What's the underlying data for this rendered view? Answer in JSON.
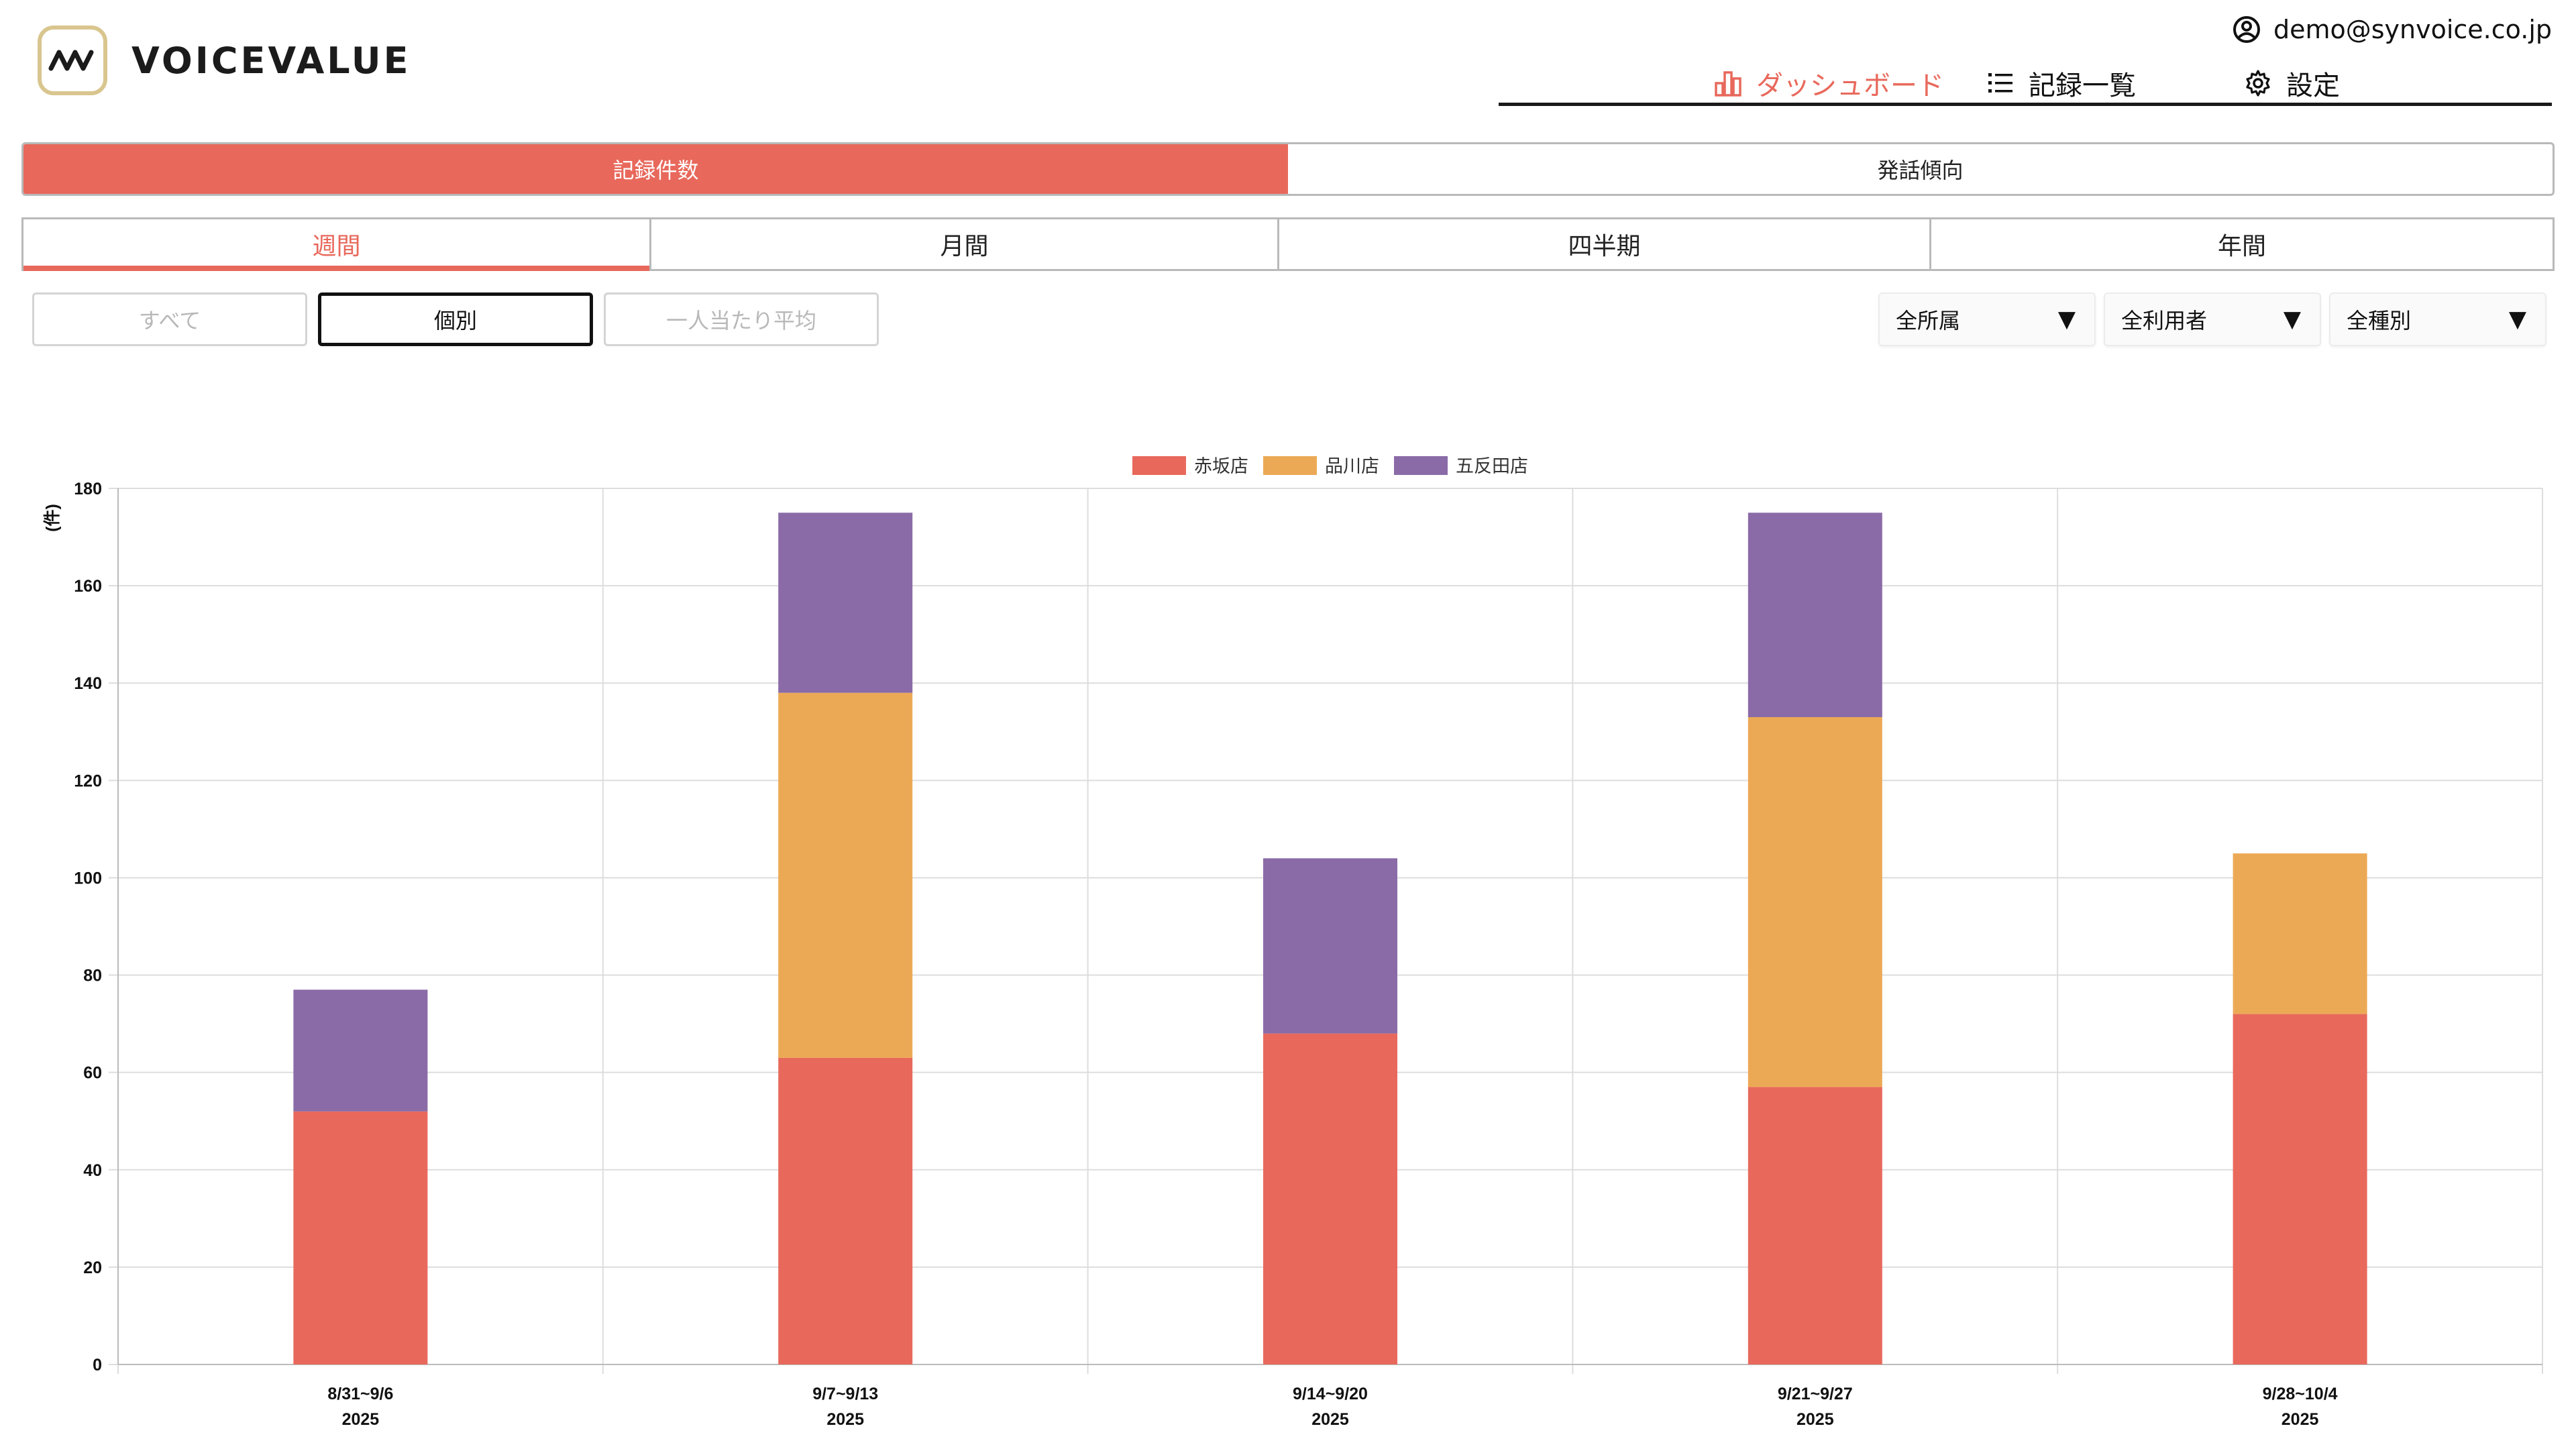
{
  "header": {
    "logo_text": "VOICEVALUE",
    "account_email": "demo@synvoice.co.jp",
    "nav": [
      {
        "label": "ダッシュボード",
        "icon": "bar-chart-icon",
        "active": true
      },
      {
        "label": "記録一覧",
        "icon": "list-icon",
        "active": false
      },
      {
        "label": "設定",
        "icon": "gear-icon",
        "active": false
      }
    ]
  },
  "main_tabs": [
    {
      "label": "記録件数",
      "active": true
    },
    {
      "label": "発話傾向",
      "active": false
    }
  ],
  "period_tabs": [
    {
      "label": "週間",
      "active": true
    },
    {
      "label": "月間",
      "active": false
    },
    {
      "label": "四半期",
      "active": false
    },
    {
      "label": "年間",
      "active": false
    }
  ],
  "mode_buttons": [
    {
      "label": "すべて",
      "active": false
    },
    {
      "label": "個別",
      "active": true
    },
    {
      "label": "一人当たり平均",
      "active": false
    }
  ],
  "filters": [
    {
      "label": "全所属",
      "arrow": "▼"
    },
    {
      "label": "全利用者",
      "arrow": "▼"
    },
    {
      "label": "全種別",
      "arrow": "▼"
    }
  ],
  "colors": {
    "accent": "#e8695c",
    "series_1": "#e8695c",
    "series_2": "#eca955",
    "series_3": "#8a6ba7",
    "grid": "#dddddd"
  },
  "chart_data": {
    "type": "bar",
    "stacked": true,
    "ylabel": "(件)",
    "ylim": [
      0,
      180
    ],
    "yticks": [
      0,
      20,
      40,
      60,
      80,
      100,
      120,
      140,
      160,
      180
    ],
    "categories": [
      [
        "8/31~9/6",
        "2025"
      ],
      [
        "9/7~9/13",
        "2025"
      ],
      [
        "9/14~9/20",
        "2025"
      ],
      [
        "9/21~9/27",
        "2025"
      ],
      [
        "9/28~10/4",
        "2025"
      ]
    ],
    "series": [
      {
        "name": "赤坂店",
        "color": "#e8695c",
        "values": [
          52,
          63,
          68,
          57,
          72
        ]
      },
      {
        "name": "品川店",
        "color": "#eca955",
        "values": [
          0,
          75,
          0,
          76,
          33
        ]
      },
      {
        "name": "五反田店",
        "color": "#8a6ba7",
        "values": [
          25,
          37,
          36,
          42,
          0
        ]
      }
    ],
    "legend_position": "top-center",
    "grid": true
  }
}
